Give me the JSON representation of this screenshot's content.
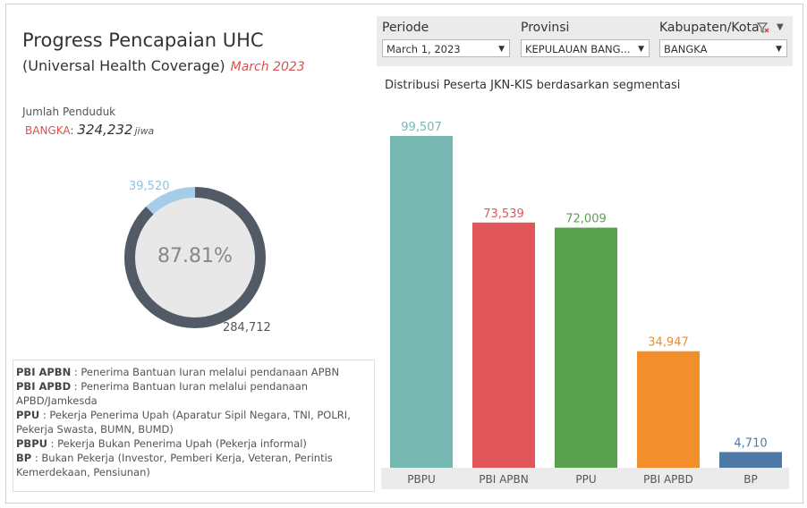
{
  "header": {
    "title": "Progress Pencapaian UHC",
    "subtitle": "(Universal Health Coverage)",
    "period": "March 2023"
  },
  "population": {
    "label": "Jumlah Penduduk",
    "region": "BANGKA",
    "separator": ":",
    "value": "324,232",
    "unit": "jiwa"
  },
  "donut": {
    "percent_label": "87.81%",
    "covered": 284712,
    "uncovered": 39520,
    "covered_label": "284,712",
    "uncovered_label": "39,520",
    "colors": {
      "covered": "#525a66",
      "uncovered": "#a6cde8",
      "center": "#e8e8e8"
    }
  },
  "legend": [
    {
      "key": "PBI APBN",
      "desc": " : Penerima Bantuan Iuran melalui pendanaan APBN"
    },
    {
      "key": "PBI APBD",
      "desc": " : Penerima Bantuan Iuran melalui pendanaan APBD/Jamkesda"
    },
    {
      "key": "PPU",
      "desc": " : Pekerja Penerima Upah (Aparatur Sipil Negara, TNI, POLRI, Pekerja Swasta, BUMN, BUMD)"
    },
    {
      "key": "PBPU",
      "desc": " : Pekerja Bukan Penerima Upah (Pekerja informal)"
    },
    {
      "key": "BP",
      "desc": " : Bukan Pekerja (Investor, Pemberi Kerja, Veteran, Perintis Kemerdekaan, Pensiunan)"
    }
  ],
  "filters": {
    "periode": {
      "label": "Periode",
      "value": "March 1, 2023"
    },
    "provinsi": {
      "label": "Provinsi",
      "value": "KEPULAUAN BANG..."
    },
    "kabupaten": {
      "label": "Kabupaten/Kota",
      "value": "BANGKA"
    },
    "clear_icon": "filter-clear-icon",
    "menu_icon": "dropdown-menu-icon"
  },
  "chart_data": {
    "type": "bar",
    "title": "Distribusi Peserta JKN-KIS berdasarkan segmentasi",
    "categories": [
      "PBPU",
      "PBI APBN",
      "PPU",
      "PBI APBD",
      "BP"
    ],
    "values": [
      99507,
      73539,
      72009,
      34947,
      4710
    ],
    "labels": [
      "99,507",
      "73,539",
      "72,009",
      "34,947",
      "4,710"
    ],
    "colors": [
      "#76b7b2",
      "#e15759",
      "#59a14f",
      "#f28e2b",
      "#4e79a7"
    ],
    "grid": false
  }
}
